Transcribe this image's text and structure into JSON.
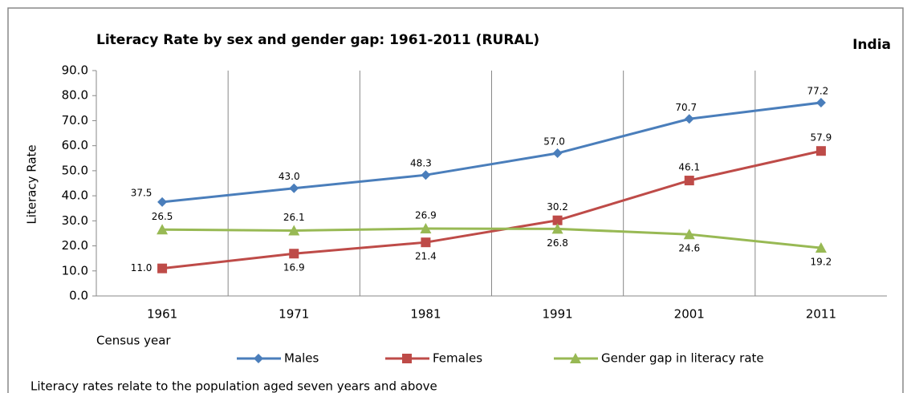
{
  "chart_data": {
    "type": "line",
    "title": "Literacy Rate by sex and gender gap: 1961-2011 (RURAL)",
    "region": "India",
    "xlabel": "Census year",
    "ylabel": "Literacy Rate",
    "note": "Literacy rates relate to the population aged seven years and above",
    "categories": [
      "1961",
      "1971",
      "1981",
      "1991",
      "2001",
      "2011"
    ],
    "series": [
      {
        "name": "Males",
        "color": "#4a7ebb",
        "marker": "diamond",
        "values": [
          37.5,
          43.0,
          48.3,
          57.0,
          70.7,
          77.2
        ],
        "value_labels": [
          "37.5",
          "43.0",
          "48.3",
          "57.0",
          "70.7",
          "77.2"
        ]
      },
      {
        "name": "Females",
        "color": "#be4b48",
        "marker": "square",
        "values": [
          11.0,
          16.9,
          21.4,
          30.2,
          46.1,
          57.9
        ],
        "value_labels": [
          "11.0",
          "16.9",
          "21.4",
          "30.2",
          "46.1",
          "57.9"
        ]
      },
      {
        "name": "Gender gap in literacy rate",
        "color": "#98b954",
        "marker": "triangle",
        "values": [
          26.5,
          26.1,
          26.9,
          26.8,
          24.6,
          19.2
        ],
        "value_labels": [
          "26.5",
          "26.1",
          "26.9",
          "26.8",
          "24.6",
          "19.2"
        ]
      }
    ],
    "ylim": [
      0,
      90
    ],
    "yticks": [
      {
        "value": 0,
        "label": "0.0"
      },
      {
        "value": 10,
        "label": "10.0"
      },
      {
        "value": 20,
        "label": "20.0"
      },
      {
        "value": 30,
        "label": "30.0"
      },
      {
        "value": 40,
        "label": "40.0"
      },
      {
        "value": 50,
        "label": "50.0"
      },
      {
        "value": 60,
        "label": "60.0"
      },
      {
        "value": 70,
        "label": "70.0"
      },
      {
        "value": 80,
        "label": "80.0"
      },
      {
        "value": 90,
        "label": "90.0"
      }
    ],
    "grid": "x",
    "legend": "bottom"
  }
}
